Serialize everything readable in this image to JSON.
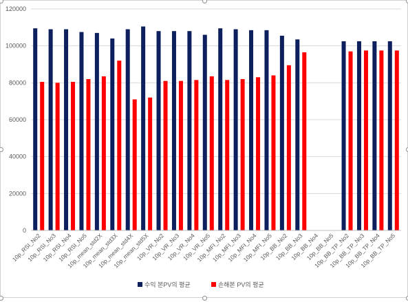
{
  "chart_data": {
    "type": "bar",
    "title": "",
    "xlabel": "",
    "ylabel": "",
    "ylim": [
      0,
      120000
    ],
    "yticks": [
      0,
      20000,
      40000,
      60000,
      80000,
      100000,
      120000
    ],
    "grid": true,
    "legend_position": "bottom",
    "categories": [
      "10p_RSI_No2",
      "10p_RSI_No3",
      "10p_RSI_No4",
      "10p_RSI_No5",
      "10p_mean_std2X",
      "10p_mean_std3X",
      "10p_mean_std4X",
      "10p_mean_std5X",
      "10p_VR_No2",
      "10p_VR_No3",
      "10p_VR_No4",
      "10p_VR_No5",
      "10p_MFI_No2",
      "10p_MFI_No3",
      "10p_MFI_No4",
      "10p_MFI_No5",
      "10p_BB_No2",
      "10p_BB_No3",
      "10p_BB_No4",
      "10p_BB_No5",
      "10p_BB_TP_No2",
      "10p_BB_TP_No3",
      "10p_BB_TP_No4",
      "10p_BB_TP_No5"
    ],
    "series": [
      {
        "name": "수익 본PV의 평균",
        "color": "#0d1f5c",
        "values": [
          109500,
          109000,
          109000,
          107500,
          107000,
          104000,
          109000,
          110500,
          108000,
          108000,
          108000,
          106000,
          109500,
          109000,
          108500,
          108500,
          105500,
          103500,
          null,
          null,
          102500,
          102500,
          102500,
          102500
        ]
      },
      {
        "name": "손해본 PV의 평균",
        "color": "#ff0000",
        "values": [
          80500,
          80000,
          80500,
          82000,
          83500,
          92000,
          71000,
          72000,
          81000,
          81000,
          81500,
          83500,
          81500,
          82000,
          83000,
          84000,
          89500,
          96500,
          null,
          null,
          97000,
          97500,
          97500,
          97500
        ]
      }
    ]
  },
  "colors": {
    "gridline": "#d9d9d9",
    "axis": "#bfbfbf",
    "text": "#595959"
  }
}
